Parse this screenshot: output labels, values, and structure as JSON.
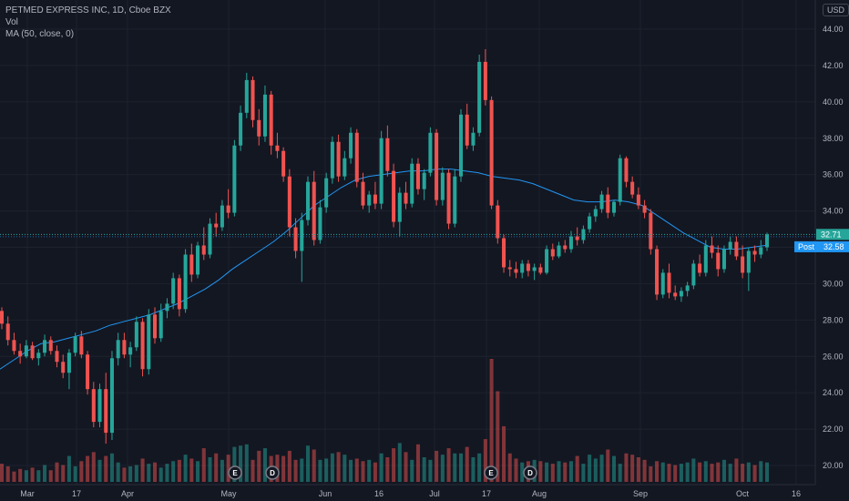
{
  "legend": {
    "symbol_line": "PETMED EXPRESS INC, 1D, Cboe BZX",
    "vol_label": "Vol",
    "ma_label": "MA (50, close, 0)"
  },
  "currency": "USD",
  "colors": {
    "background": "#131722",
    "up": "#26a69a",
    "down": "#ef5350",
    "ma": "#2196f3",
    "price_tag": "#26a69a",
    "post_tag": "#2196f3",
    "grid": "#1e222d"
  },
  "chart_data": {
    "type": "candlestick",
    "title": "PETMED EXPRESS INC, 1D, Cboe BZX",
    "ylim": [
      19,
      45
    ],
    "y_ticks": [
      "20.00",
      "22.00",
      "24.00",
      "26.00",
      "28.00",
      "30.00",
      "32.00",
      "34.00",
      "36.00",
      "38.00",
      "40.00",
      "42.00",
      "44.00"
    ],
    "x_ticks": [
      "Mar",
      "17",
      "Apr",
      "May",
      "Jun",
      "16",
      "Jul",
      "17",
      "Aug",
      "Sep",
      "Oct",
      "16"
    ],
    "last_price": "32.71",
    "post_label": "Post",
    "post_price": "32.58",
    "candles": [
      [
        28.5,
        28.7,
        27.5,
        27.8
      ],
      [
        27.8,
        28.2,
        26.6,
        26.9
      ],
      [
        26.9,
        27.3,
        26.1,
        26.3
      ],
      [
        26.3,
        26.7,
        25.6,
        26.0
      ],
      [
        26.0,
        26.9,
        25.9,
        26.6
      ],
      [
        26.6,
        26.8,
        25.8,
        25.9
      ],
      [
        25.9,
        26.4,
        25.5,
        26.2
      ],
      [
        26.2,
        27.2,
        26.0,
        26.9
      ],
      [
        26.9,
        27.1,
        26.1,
        26.3
      ],
      [
        26.3,
        26.6,
        25.4,
        25.7
      ],
      [
        25.7,
        26.1,
        24.8,
        25.1
      ],
      [
        25.1,
        26.4,
        24.2,
        26.2
      ],
      [
        26.2,
        27.3,
        26.0,
        27.1
      ],
      [
        27.1,
        27.4,
        25.9,
        26.1
      ],
      [
        26.1,
        26.3,
        23.9,
        24.2
      ],
      [
        24.2,
        24.6,
        22.1,
        22.4
      ],
      [
        22.4,
        24.5,
        22.1,
        24.2
      ],
      [
        24.2,
        25.1,
        21.2,
        21.8
      ],
      [
        21.8,
        26.3,
        21.4,
        25.9
      ],
      [
        25.9,
        27.3,
        25.5,
        26.9
      ],
      [
        26.9,
        27.3,
        25.9,
        26.1
      ],
      [
        26.1,
        26.8,
        25.4,
        26.5
      ],
      [
        26.5,
        28.2,
        26.3,
        27.9
      ],
      [
        27.9,
        28.1,
        24.9,
        25.3
      ],
      [
        25.3,
        28.6,
        25.0,
        28.3
      ],
      [
        28.3,
        28.7,
        26.7,
        27.0
      ],
      [
        27.0,
        28.9,
        26.8,
        28.5
      ],
      [
        28.5,
        29.2,
        28.1,
        28.9
      ],
      [
        28.9,
        30.6,
        28.6,
        30.3
      ],
      [
        30.3,
        30.5,
        28.2,
        28.6
      ],
      [
        28.6,
        31.9,
        28.4,
        31.6
      ],
      [
        31.6,
        32.2,
        30.1,
        30.5
      ],
      [
        30.5,
        32.3,
        30.3,
        32.1
      ],
      [
        32.1,
        33.1,
        31.3,
        31.6
      ],
      [
        31.6,
        33.6,
        31.4,
        33.3
      ],
      [
        33.3,
        33.9,
        32.6,
        33.1
      ],
      [
        33.1,
        34.6,
        32.9,
        34.3
      ],
      [
        34.3,
        35.2,
        33.6,
        33.9
      ],
      [
        33.9,
        37.9,
        33.7,
        37.6
      ],
      [
        37.6,
        39.8,
        37.3,
        39.4
      ],
      [
        39.4,
        41.6,
        39.1,
        41.2
      ],
      [
        41.2,
        41.4,
        38.6,
        39.0
      ],
      [
        39.0,
        39.6,
        37.6,
        38.1
      ],
      [
        38.1,
        40.9,
        37.8,
        40.4
      ],
      [
        40.4,
        40.6,
        37.1,
        37.6
      ],
      [
        37.6,
        38.3,
        36.9,
        37.3
      ],
      [
        37.3,
        37.5,
        35.6,
        35.9
      ],
      [
        35.9,
        36.3,
        32.6,
        33.1
      ],
      [
        33.1,
        33.6,
        31.4,
        31.8
      ],
      [
        31.8,
        33.9,
        30.1,
        33.5
      ],
      [
        33.5,
        35.9,
        33.2,
        35.6
      ],
      [
        35.6,
        36.2,
        32.1,
        32.4
      ],
      [
        32.4,
        34.6,
        32.2,
        34.2
      ],
      [
        34.2,
        36.1,
        33.9,
        35.8
      ],
      [
        35.8,
        38.1,
        35.5,
        37.8
      ],
      [
        37.8,
        38.2,
        35.6,
        35.9
      ],
      [
        35.9,
        37.3,
        35.7,
        36.9
      ],
      [
        36.9,
        38.6,
        36.6,
        38.3
      ],
      [
        38.3,
        38.5,
        35.3,
        35.6
      ],
      [
        35.6,
        36.1,
        34.1,
        34.3
      ],
      [
        34.3,
        35.1,
        33.9,
        34.9
      ],
      [
        34.9,
        35.6,
        34.1,
        34.4
      ],
      [
        34.4,
        38.4,
        34.1,
        38.0
      ],
      [
        38.0,
        38.7,
        35.9,
        36.2
      ],
      [
        36.2,
        36.6,
        33.1,
        33.4
      ],
      [
        33.4,
        35.3,
        32.6,
        35.0
      ],
      [
        35.0,
        35.6,
        34.1,
        34.4
      ],
      [
        34.4,
        36.9,
        34.2,
        36.6
      ],
      [
        36.6,
        36.9,
        34.9,
        35.2
      ],
      [
        35.2,
        36.3,
        34.6,
        36.1
      ],
      [
        36.1,
        38.6,
        35.9,
        38.3
      ],
      [
        38.3,
        38.5,
        34.3,
        34.6
      ],
      [
        34.6,
        36.4,
        34.3,
        36.1
      ],
      [
        36.1,
        36.3,
        33.0,
        33.3
      ],
      [
        33.3,
        36.3,
        33.1,
        35.9
      ],
      [
        35.9,
        39.6,
        35.6,
        39.3
      ],
      [
        39.3,
        39.9,
        37.4,
        37.6
      ],
      [
        37.6,
        38.6,
        37.3,
        38.3
      ],
      [
        38.3,
        42.6,
        38.1,
        42.2
      ],
      [
        42.2,
        42.9,
        39.8,
        40.1
      ],
      [
        40.1,
        40.3,
        34.1,
        34.3
      ],
      [
        34.3,
        34.6,
        32.2,
        32.5
      ],
      [
        32.5,
        32.7,
        30.6,
        30.9
      ],
      [
        30.9,
        31.3,
        30.4,
        30.8
      ],
      [
        30.8,
        31.2,
        30.3,
        30.6
      ],
      [
        30.6,
        31.3,
        30.3,
        31.1
      ],
      [
        31.1,
        31.3,
        30.4,
        30.7
      ],
      [
        30.7,
        31.1,
        30.2,
        30.9
      ],
      [
        30.9,
        31.1,
        30.5,
        30.6
      ],
      [
        30.6,
        32.1,
        30.5,
        31.9
      ],
      [
        31.9,
        32.2,
        31.3,
        31.5
      ],
      [
        31.5,
        32.3,
        31.4,
        32.1
      ],
      [
        32.1,
        32.4,
        31.7,
        31.9
      ],
      [
        31.9,
        32.9,
        31.7,
        32.6
      ],
      [
        32.6,
        33.1,
        32.1,
        32.4
      ],
      [
        32.4,
        33.2,
        32.2,
        33.0
      ],
      [
        33.0,
        33.9,
        32.8,
        33.7
      ],
      [
        33.7,
        34.3,
        33.4,
        34.1
      ],
      [
        34.1,
        35.1,
        33.9,
        34.9
      ],
      [
        34.9,
        35.3,
        33.6,
        33.9
      ],
      [
        33.9,
        34.6,
        33.7,
        34.5
      ],
      [
        34.5,
        37.1,
        34.3,
        36.9
      ],
      [
        36.9,
        37.0,
        35.3,
        35.6
      ],
      [
        35.6,
        35.9,
        34.7,
        34.9
      ],
      [
        34.9,
        35.3,
        34.1,
        34.3
      ],
      [
        34.3,
        34.6,
        33.6,
        33.9
      ],
      [
        33.9,
        34.1,
        31.6,
        31.9
      ],
      [
        31.9,
        32.1,
        29.1,
        29.4
      ],
      [
        29.4,
        30.8,
        29.2,
        30.6
      ],
      [
        30.6,
        31.1,
        29.2,
        29.5
      ],
      [
        29.5,
        29.9,
        29.1,
        29.3
      ],
      [
        29.3,
        29.8,
        29.0,
        29.6
      ],
      [
        29.6,
        30.1,
        29.3,
        29.9
      ],
      [
        29.9,
        31.3,
        29.7,
        31.1
      ],
      [
        31.1,
        31.6,
        30.4,
        30.6
      ],
      [
        30.6,
        32.4,
        30.4,
        32.1
      ],
      [
        32.1,
        32.6,
        31.4,
        31.7
      ],
      [
        31.7,
        32.1,
        30.4,
        30.8
      ],
      [
        30.8,
        32.1,
        30.6,
        31.9
      ],
      [
        31.9,
        32.6,
        31.6,
        32.3
      ],
      [
        32.3,
        32.6,
        31.3,
        31.5
      ],
      [
        31.5,
        32.1,
        30.3,
        30.6
      ],
      [
        30.6,
        32.0,
        29.6,
        31.8
      ],
      [
        31.8,
        32.1,
        31.2,
        31.6
      ],
      [
        31.6,
        32.4,
        31.4,
        32.0
      ],
      [
        32.0,
        32.8,
        31.8,
        32.71
      ]
    ],
    "volume": [
      14,
      12,
      8,
      10,
      9,
      11,
      9,
      13,
      9,
      15,
      13,
      20,
      12,
      16,
      20,
      23,
      17,
      20,
      22,
      15,
      11,
      12,
      13,
      18,
      14,
      15,
      11,
      14,
      16,
      17,
      21,
      18,
      16,
      26,
      19,
      22,
      17,
      21,
      27,
      28,
      29,
      17,
      24,
      26,
      20,
      21,
      20,
      24,
      17,
      18,
      28,
      25,
      17,
      18,
      22,
      23,
      21,
      17,
      18,
      16,
      17,
      15,
      22,
      19,
      26,
      30,
      23,
      17,
      29,
      19,
      17,
      24,
      21,
      26,
      22,
      22,
      27,
      19,
      22,
      33,
      95,
      70,
      43,
      22,
      18,
      15,
      16,
      17,
      16,
      15,
      14,
      16,
      15,
      16,
      20,
      14,
      21,
      18,
      21,
      25,
      20,
      14,
      22,
      21,
      19,
      17,
      12,
      16,
      15,
      14,
      13,
      14,
      15,
      18,
      15,
      16,
      14,
      15,
      17,
      14,
      18,
      14,
      15,
      13,
      16,
      15
    ],
    "ma50": [
      [
        0,
        25.3
      ],
      [
        15,
        25.8
      ],
      [
        30,
        26.3
      ],
      [
        45,
        26.7
      ],
      [
        60,
        26.8
      ],
      [
        75,
        27.0
      ],
      [
        90,
        27.2
      ],
      [
        105,
        27.4
      ],
      [
        120,
        27.7
      ],
      [
        135,
        27.9
      ],
      [
        150,
        28.1
      ],
      [
        165,
        28.3
      ],
      [
        180,
        28.6
      ],
      [
        195,
        28.9
      ],
      [
        210,
        29.3
      ],
      [
        225,
        29.7
      ],
      [
        240,
        30.2
      ],
      [
        255,
        30.8
      ],
      [
        270,
        31.3
      ],
      [
        285,
        31.8
      ],
      [
        300,
        32.3
      ],
      [
        315,
        32.9
      ],
      [
        330,
        33.6
      ],
      [
        345,
        34.3
      ],
      [
        360,
        34.8
      ],
      [
        375,
        35.3
      ],
      [
        390,
        35.7
      ],
      [
        405,
        35.9
      ],
      [
        420,
        36.0
      ],
      [
        435,
        36.1
      ],
      [
        450,
        36.2
      ],
      [
        465,
        36.2
      ],
      [
        480,
        36.3
      ],
      [
        495,
        36.3
      ],
      [
        510,
        36.2
      ],
      [
        525,
        36.1
      ],
      [
        540,
        35.9
      ],
      [
        555,
        35.8
      ],
      [
        570,
        35.7
      ],
      [
        585,
        35.5
      ],
      [
        600,
        35.2
      ],
      [
        615,
        34.9
      ],
      [
        630,
        34.6
      ],
      [
        645,
        34.5
      ],
      [
        660,
        34.5
      ],
      [
        675,
        34.6
      ],
      [
        690,
        34.5
      ],
      [
        705,
        34.3
      ],
      [
        720,
        33.8
      ],
      [
        735,
        33.3
      ],
      [
        750,
        32.8
      ],
      [
        765,
        32.4
      ],
      [
        780,
        32.0
      ],
      [
        795,
        31.9
      ],
      [
        810,
        31.9
      ],
      [
        825,
        32.0
      ],
      [
        840,
        32.1
      ]
    ],
    "earnings_markers": [
      "E",
      "D",
      "E",
      "D"
    ]
  }
}
